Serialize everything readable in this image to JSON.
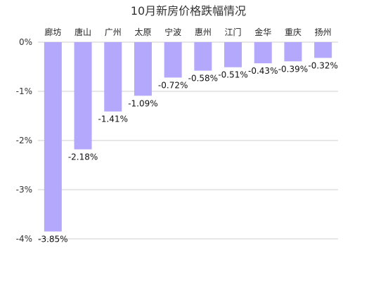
{
  "chart_data": {
    "type": "bar",
    "title": "10月新房价格跌幅情况",
    "categories": [
      "廊坊",
      "唐山",
      "广州",
      "太原",
      "宁波",
      "惠州",
      "江门",
      "金华",
      "重庆",
      "扬州"
    ],
    "values": [
      -3.85,
      -2.18,
      -1.41,
      -1.09,
      -0.72,
      -0.58,
      -0.51,
      -0.43,
      -0.39,
      -0.32
    ],
    "data_labels": [
      "-3.85%",
      "-2.18%",
      "-1.41%",
      "-1.09%",
      "-0.72%",
      "-0.58%",
      "-0.51%",
      "-0.43%",
      "-0.39%",
      "-0.32%"
    ],
    "y_ticks": [
      0,
      -1,
      -2,
      -3,
      -4
    ],
    "y_tick_labels": [
      "0%",
      "-1%",
      "-2%",
      "-3%",
      "-4%"
    ],
    "ylim": [
      -4,
      0
    ],
    "xlabel": "",
    "ylabel": "",
    "grid": true,
    "category_axis_position": "top",
    "bar_color": "#b3a8fb"
  }
}
